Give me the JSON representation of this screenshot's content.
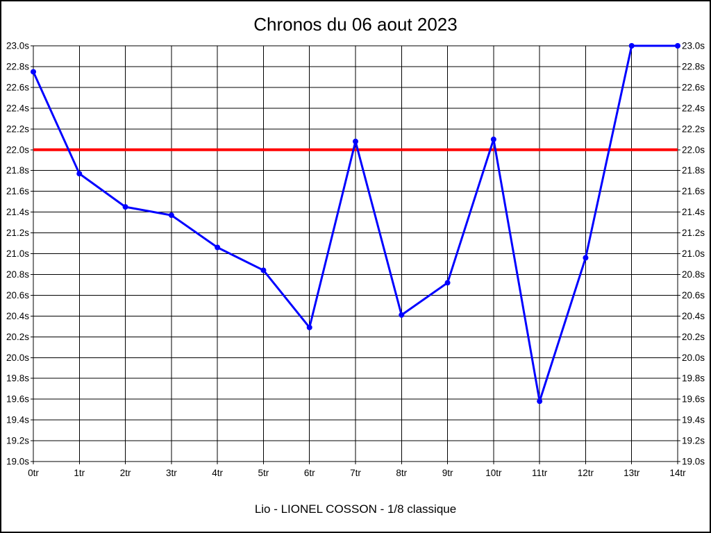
{
  "page": {
    "caption": "Lio - LIONEL COSSON - 1/8 classique"
  },
  "chart_data": {
    "type": "line",
    "title": "Chronos du 06 aout 2023",
    "x_tick_labels": [
      "0tr",
      "1tr",
      "2tr",
      "3tr",
      "4tr",
      "5tr",
      "6tr",
      "7tr",
      "8tr",
      "9tr",
      "10tr",
      "11tr",
      "12tr",
      "13tr",
      "14tr"
    ],
    "series": [
      {
        "name": "chronos",
        "color": "#0000ff",
        "values": [
          22.75,
          21.77,
          21.45,
          21.37,
          21.06,
          20.84,
          20.29,
          22.08,
          20.41,
          20.72,
          22.1,
          19.58,
          20.96,
          23.0,
          23.0
        ]
      }
    ],
    "reference_line": {
      "value": 22.0,
      "color": "#ff0000"
    },
    "ylim": [
      19.0,
      23.0
    ],
    "y_tick_step": 0.2,
    "y_tick_suffix": "s",
    "grid": true,
    "y_labels_both_sides": true,
    "legend_position": "none"
  },
  "colors": {
    "line": "#0000ff",
    "reference": "#ff0000",
    "grid": "#000000",
    "text": "#000000",
    "background": "#ffffff",
    "border": "#000000"
  }
}
